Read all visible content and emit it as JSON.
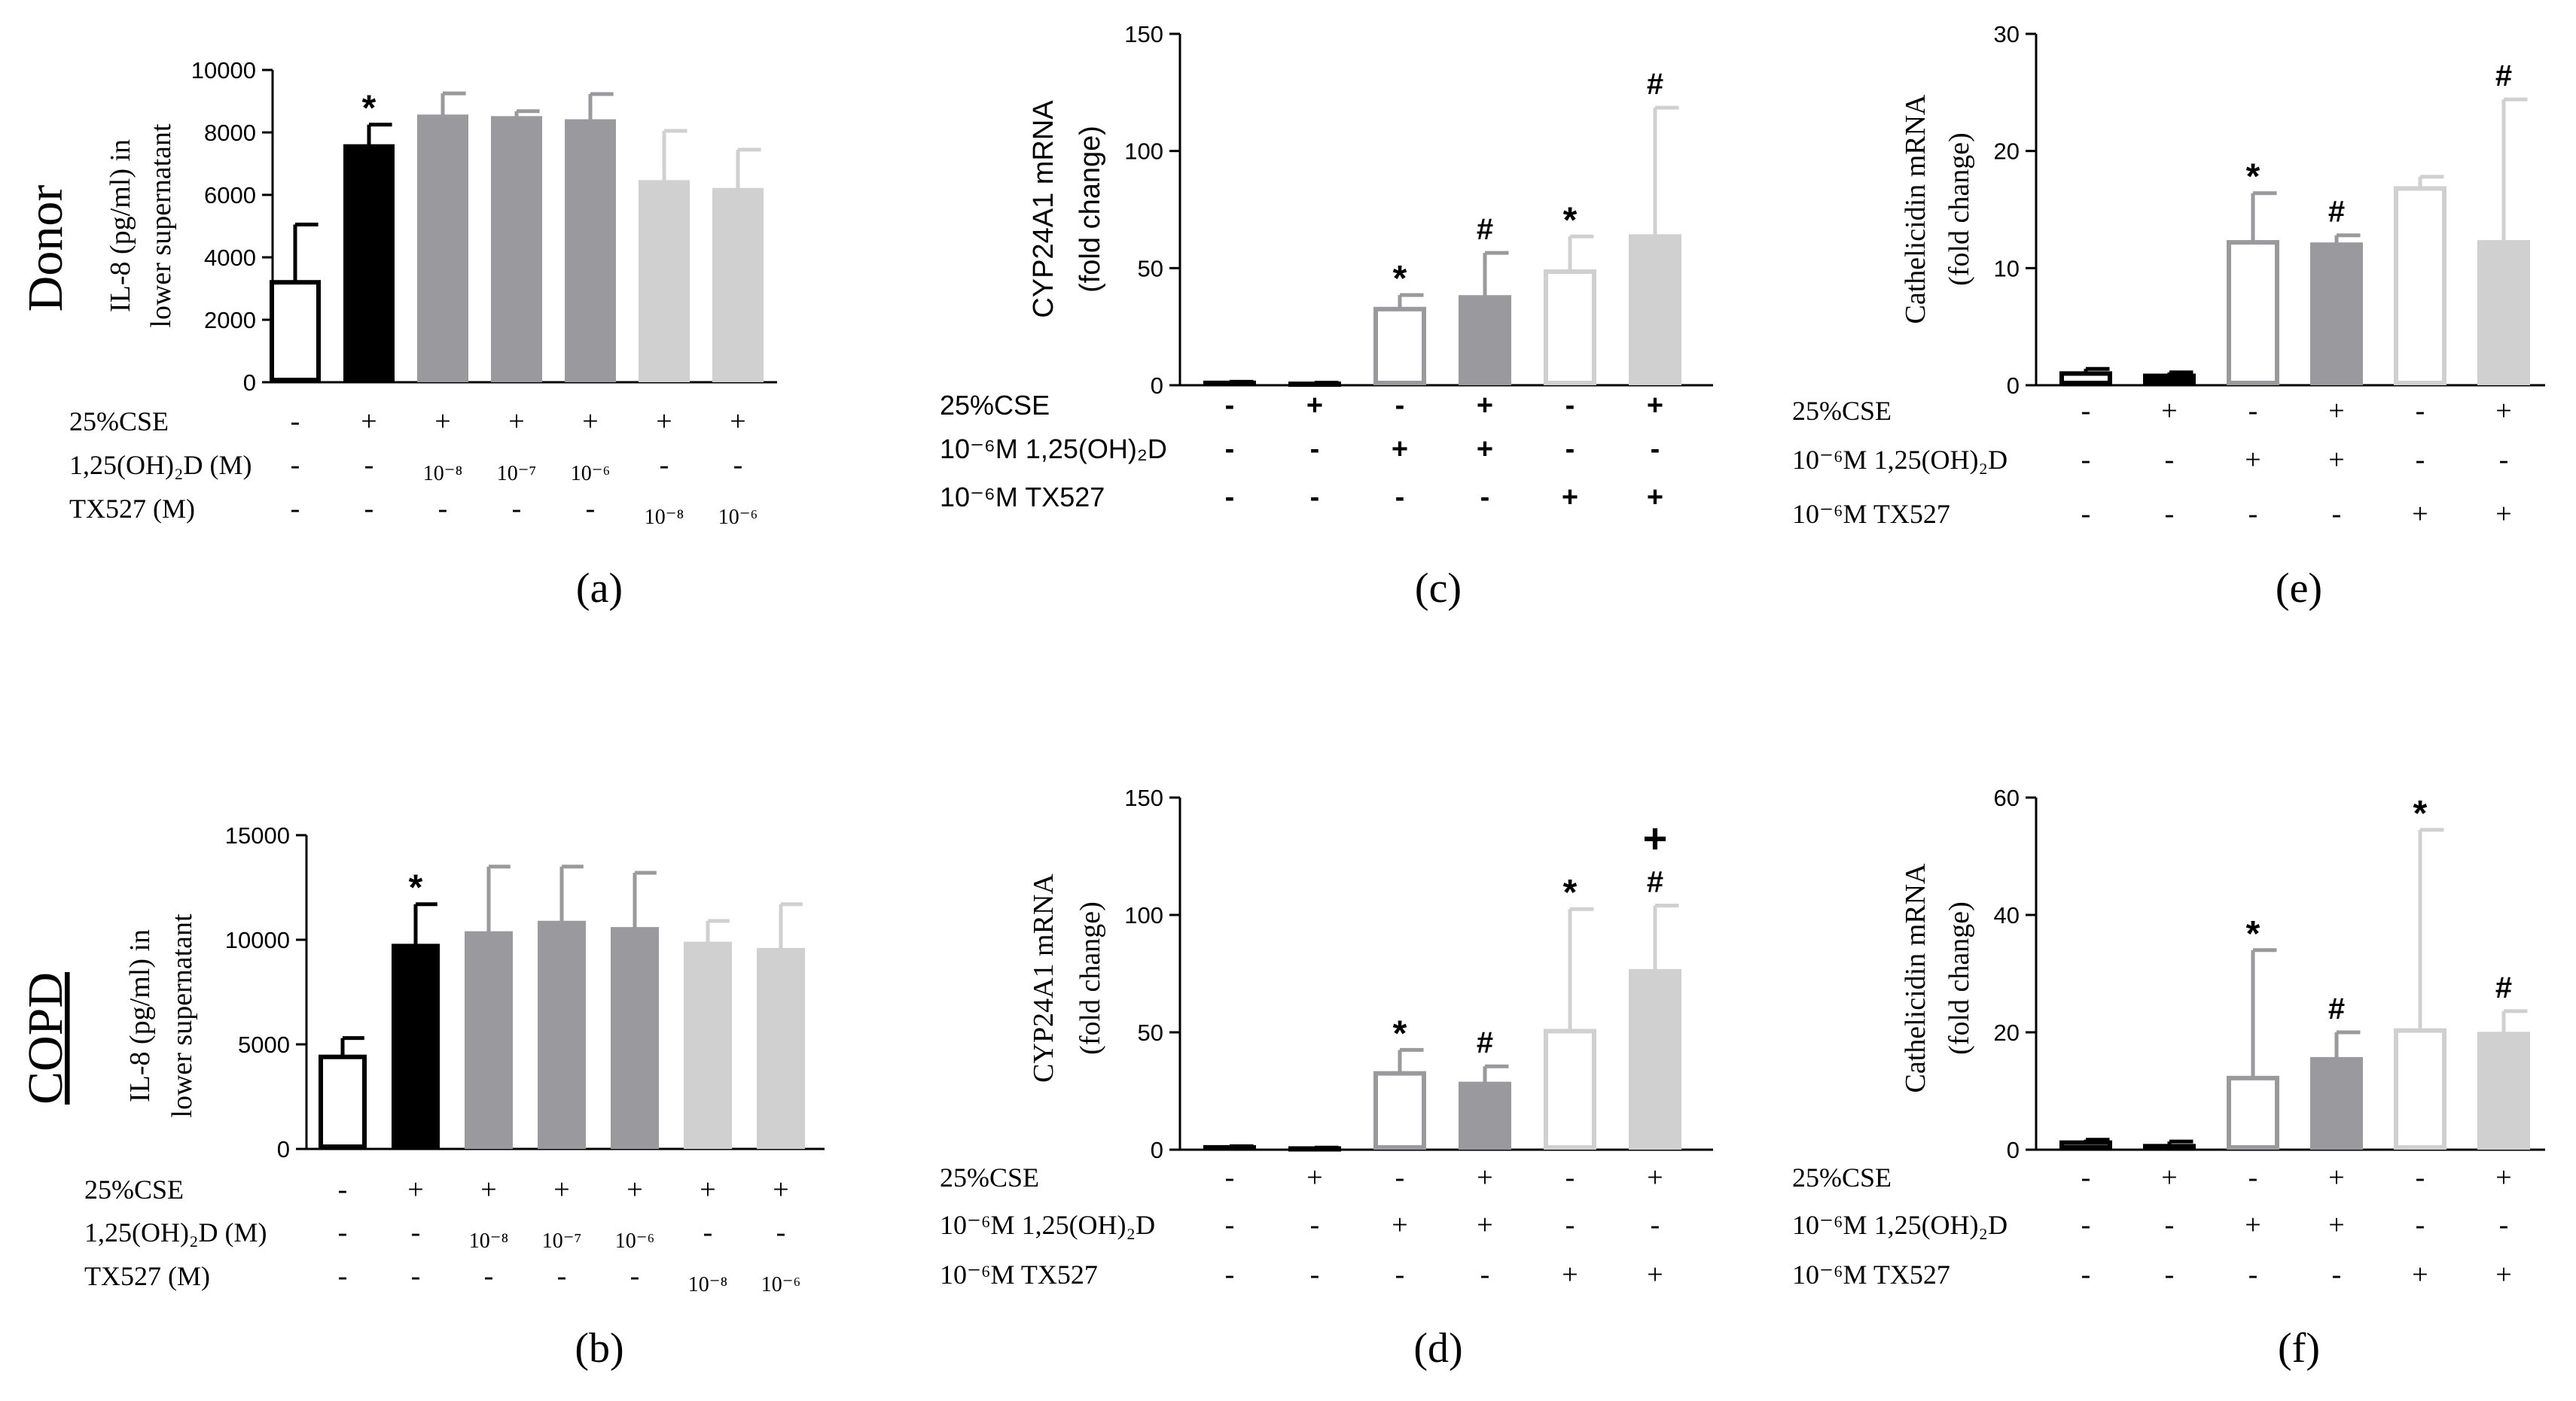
{
  "row_labels": [
    "Donor",
    "COPD"
  ],
  "chart_data": [
    {
      "type": "bar",
      "panel": "(a)",
      "ylabel_lines": [
        "IL-8 (pg/ml) in",
        "lower supernatant"
      ],
      "ylim": [
        0,
        10000
      ],
      "yticks": [
        0,
        2000,
        4000,
        6000,
        8000,
        10000
      ],
      "font": "serif",
      "values": [
        3200,
        7550,
        8500,
        8450,
        8350,
        6400,
        6150
      ],
      "errors": [
        1850,
        700,
        750,
        230,
        880,
        1650,
        1300
      ],
      "fills": [
        "#ffffff",
        "#000000",
        "#9a9a9e",
        "#9a9a9e",
        "#9a9a9e",
        "#d0d0d0",
        "#d0d0d0"
      ],
      "strokes": [
        "#000000",
        "#000000",
        "#9a9a9e",
        "#9a9a9e",
        "#9a9a9e",
        "#d0d0d0",
        "#d0d0d0"
      ],
      "markers": [
        "",
        "*",
        "",
        "",
        "",
        "",
        ""
      ],
      "conditions": [
        {
          "label": "25%CSE",
          "values": [
            "-",
            "+",
            "+",
            "+",
            "+",
            "+",
            "+"
          ]
        },
        {
          "label": "1,25(OH)₂D (M)",
          "values": [
            "-",
            "-",
            "10⁻⁸",
            "10⁻⁷",
            "10⁻⁶",
            "-",
            "-"
          ]
        },
        {
          "label": "TX527 (M)",
          "values": [
            "-",
            "-",
            "-",
            "-",
            "-",
            "10⁻⁸",
            "10⁻⁶"
          ]
        }
      ]
    },
    {
      "type": "bar",
      "panel": "(c)",
      "ylabel_lines": [
        "CYP24A1 mRNA",
        "(fold change)"
      ],
      "ylim": [
        0,
        150
      ],
      "yticks": [
        0,
        50,
        100,
        150
      ],
      "font": "sans",
      "values": [
        1,
        0.6,
        32.5,
        37.5,
        48.5,
        63.5
      ],
      "errors": [
        0.5,
        0.5,
        6,
        19,
        15,
        55
      ],
      "fills": [
        "#ffffff",
        "#000000",
        "#ffffff",
        "#9a9a9e",
        "#ffffff",
        "#d0d0d0"
      ],
      "strokes": [
        "#000000",
        "#000000",
        "#9a9a9e",
        "#9a9a9e",
        "#d0d0d0",
        "#d0d0d0"
      ],
      "markers": [
        "",
        "",
        "*",
        "#",
        "*",
        "#"
      ],
      "conditions": [
        {
          "label": "25%CSE",
          "values": [
            "-",
            "+",
            "-",
            "+",
            "-",
            "+"
          ]
        },
        {
          "label": "10⁻⁶M 1,25(OH)₂D",
          "values": [
            "-",
            "-",
            "+",
            "+",
            "-",
            "-"
          ]
        },
        {
          "label": "10⁻⁶M TX527",
          "values": [
            "-",
            "-",
            "-",
            "-",
            "+",
            "+"
          ]
        }
      ]
    },
    {
      "type": "bar",
      "panel": "(e)",
      "ylabel_lines": [
        "Cathelicidin mRNA",
        "(fold change)"
      ],
      "ylim": [
        0,
        30
      ],
      "yticks": [
        0,
        10,
        20,
        30
      ],
      "font": "serif",
      "values": [
        1.0,
        0.8,
        12.2,
        12.0,
        16.8,
        12.2
      ],
      "errors": [
        0.4,
        0.3,
        4.2,
        0.8,
        1.0,
        12.2
      ],
      "fills": [
        "#ffffff",
        "#000000",
        "#ffffff",
        "#9a9a9e",
        "#ffffff",
        "#d0d0d0"
      ],
      "strokes": [
        "#000000",
        "#000000",
        "#9a9a9e",
        "#9a9a9e",
        "#d0d0d0",
        "#d0d0d0"
      ],
      "markers": [
        "",
        "",
        "*",
        "#",
        "",
        "#"
      ],
      "conditions": [
        {
          "label": "25%CSE",
          "values": [
            "-",
            "+",
            "-",
            "+",
            "-",
            "+"
          ]
        },
        {
          "label": "10⁻⁶M 1,25(OH)₂D",
          "values": [
            "-",
            "-",
            "+",
            "+",
            "-",
            "-"
          ]
        },
        {
          "label": "10⁻⁶M TX527",
          "values": [
            "-",
            "-",
            "-",
            "-",
            "+",
            "+"
          ]
        }
      ]
    },
    {
      "type": "bar",
      "panel": "(b)",
      "ylabel_lines": [
        "IL-8 (pg/ml) in",
        "lower supernatant"
      ],
      "ylim": [
        0,
        15000
      ],
      "yticks": [
        0,
        5000,
        10000,
        15000
      ],
      "font": "serif",
      "values": [
        4400,
        9700,
        10300,
        10800,
        10500,
        9800,
        9500
      ],
      "errors": [
        900,
        2000,
        3200,
        2700,
        2700,
        1100,
        2200
      ],
      "fills": [
        "#ffffff",
        "#000000",
        "#9a9a9e",
        "#9a9a9e",
        "#9a9a9e",
        "#d0d0d0",
        "#d0d0d0"
      ],
      "strokes": [
        "#000000",
        "#000000",
        "#9a9a9e",
        "#9a9a9e",
        "#9a9a9e",
        "#d0d0d0",
        "#d0d0d0"
      ],
      "markers": [
        "",
        "*",
        "",
        "",
        "",
        "",
        ""
      ],
      "conditions": [
        {
          "label": "25%CSE",
          "values": [
            "-",
            "+",
            "+",
            "+",
            "+",
            "+",
            "+"
          ]
        },
        {
          "label": "1,25(OH)₂D (M)",
          "values": [
            "-",
            "-",
            "10⁻⁸",
            "10⁻⁷",
            "10⁻⁶",
            "-",
            "-"
          ]
        },
        {
          "label": "TX527 (M)",
          "values": [
            "-",
            "-",
            "-",
            "-",
            "-",
            "10⁻⁸",
            "10⁻⁶"
          ]
        }
      ]
    },
    {
      "type": "bar",
      "panel": "(d)",
      "ylabel_lines": [
        "CYP24A1 mRNA",
        "(fold change)"
      ],
      "ylim": [
        0,
        150
      ],
      "yticks": [
        0,
        50,
        100,
        150
      ],
      "font": "serif",
      "values": [
        1,
        0.5,
        32.5,
        28,
        50.5,
        76
      ],
      "errors": [
        0.5,
        0.4,
        10,
        7.5,
        52,
        28
      ],
      "fills": [
        "#ffffff",
        "#000000",
        "#ffffff",
        "#9a9a9e",
        "#ffffff",
        "#d0d0d0"
      ],
      "strokes": [
        "#000000",
        "#000000",
        "#9a9a9e",
        "#9a9a9e",
        "#d0d0d0",
        "#d0d0d0"
      ],
      "markers": [
        "",
        "",
        "*",
        "#",
        "*",
        "+#"
      ],
      "conditions": [
        {
          "label": "25%CSE",
          "values": [
            "-",
            "+",
            "-",
            "+",
            "-",
            "+"
          ]
        },
        {
          "label": "10⁻⁶M 1,25(OH)₂D",
          "values": [
            "-",
            "-",
            "+",
            "+",
            "-",
            "-"
          ]
        },
        {
          "label": "10⁻⁶M TX527",
          "values": [
            "-",
            "-",
            "-",
            "-",
            "+",
            "+"
          ]
        }
      ]
    },
    {
      "type": "bar",
      "panel": "(f)",
      "ylabel_lines": [
        "Cathelicidin mRNA",
        "(fold change)"
      ],
      "ylim": [
        0,
        60
      ],
      "yticks": [
        0,
        20,
        40,
        60
      ],
      "font": "serif",
      "values": [
        1.2,
        0.6,
        12.2,
        15.4,
        20.3,
        19.7
      ],
      "errors": [
        0.5,
        0.8,
        21.8,
        4.6,
        34.2,
        3.9
      ],
      "fills": [
        "#ffffff",
        "#000000",
        "#ffffff",
        "#9a9a9e",
        "#ffffff",
        "#d0d0d0"
      ],
      "strokes": [
        "#000000",
        "#000000",
        "#9a9a9e",
        "#9a9a9e",
        "#d0d0d0",
        "#d0d0d0"
      ],
      "markers": [
        "",
        "",
        "*",
        "#",
        "*",
        "#"
      ],
      "conditions": [
        {
          "label": "25%CSE",
          "values": [
            "-",
            "+",
            "-",
            "+",
            "-",
            "+"
          ]
        },
        {
          "label": "10⁻⁶M 1,25(OH)₂D",
          "values": [
            "-",
            "-",
            "+",
            "+",
            "-",
            "-"
          ]
        },
        {
          "label": "10⁻⁶M TX527",
          "values": [
            "-",
            "-",
            "-",
            "-",
            "+",
            "+"
          ]
        }
      ]
    }
  ]
}
